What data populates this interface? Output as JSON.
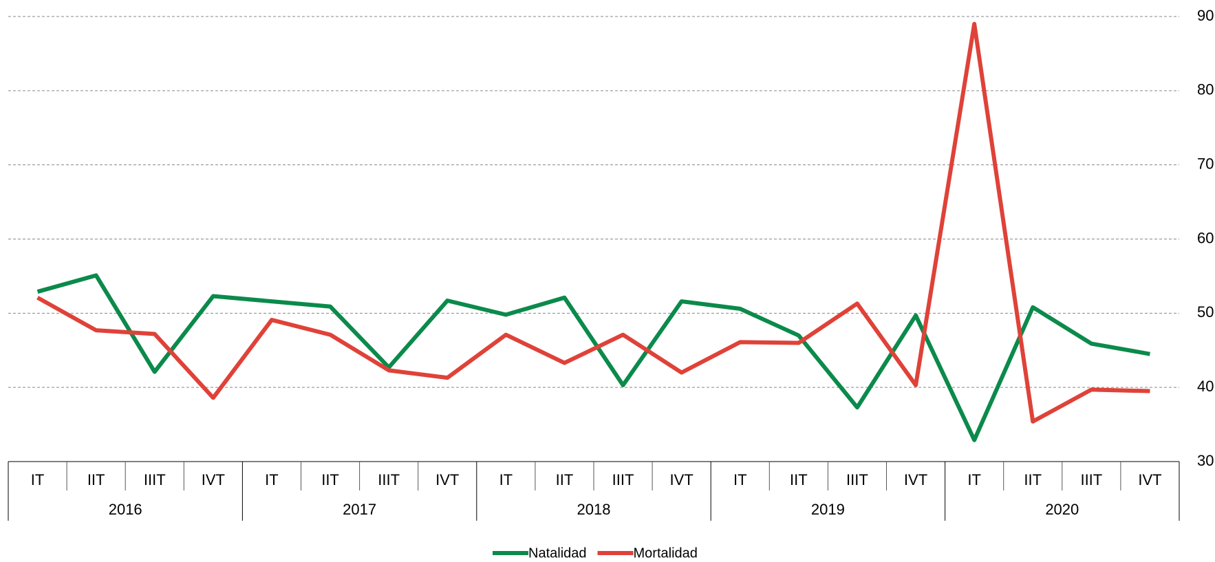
{
  "chart_data": {
    "type": "line",
    "categories": [
      "IT",
      "IIT",
      "IIIT",
      "IVT",
      "IT",
      "IIT",
      "IIIT",
      "IVT",
      "IT",
      "IIT",
      "IIIT",
      "IVT",
      "IT",
      "IIT",
      "IIIT",
      "IVT",
      "IT",
      "IIT",
      "IIIT",
      "IVT"
    ],
    "years": [
      "2016",
      "2017",
      "2018",
      "2019",
      "2020"
    ],
    "series": [
      {
        "name": "Natalidad",
        "color": "#0b8a4b",
        "values": [
          52.9,
          55.1,
          42.1,
          52.3,
          51.6,
          50.9,
          42.7,
          51.7,
          49.8,
          52.1,
          40.3,
          51.6,
          50.6,
          47.0,
          37.3,
          49.7,
          32.9,
          50.8,
          45.9,
          44.5
        ]
      },
      {
        "name": "Mortalidad",
        "color": "#df4238",
        "values": [
          52.1,
          47.7,
          47.2,
          38.6,
          49.1,
          47.1,
          42.3,
          41.3,
          47.1,
          43.3,
          47.1,
          42.0,
          46.1,
          46.0,
          51.3,
          40.3,
          89.0,
          35.4,
          39.7,
          39.5
        ]
      }
    ],
    "ylim": [
      30,
      90
    ],
    "yticks": [
      30,
      40,
      50,
      60,
      70,
      80,
      90
    ],
    "grid": true,
    "y_axis_side": "right",
    "legend": "bottom"
  }
}
